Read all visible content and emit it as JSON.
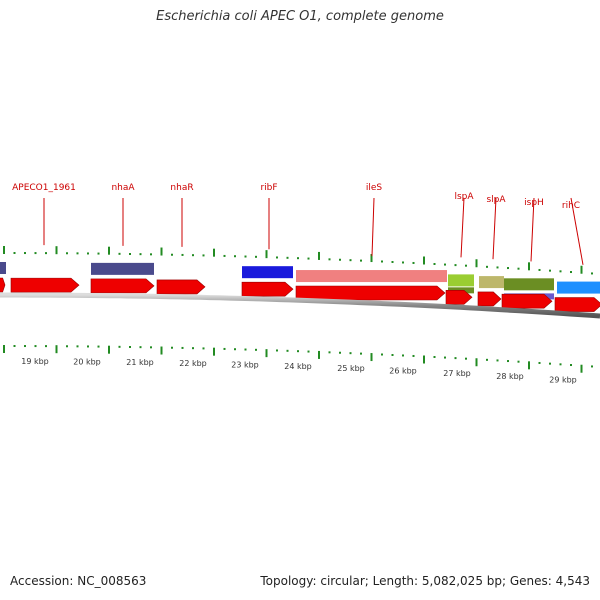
{
  "header": {
    "title": "Escherichia coli APEC O1, complete genome"
  },
  "footer": {
    "accession": "Accession: NC_008563",
    "stats": "Topology: circular; Length: 5,082,025 bp; Genes: 4,543"
  },
  "colors": {
    "cds_red": "#ee0000",
    "tick_green": "#228b22",
    "label_red": "#cc0000",
    "backbone": "#777777"
  },
  "axis": {
    "ticks": [
      {
        "label": "19 kbp"
      },
      {
        "label": "20 kbp"
      },
      {
        "label": "21 kbp"
      },
      {
        "label": "22 kbp"
      },
      {
        "label": "23 kbp"
      },
      {
        "label": "24 kbp"
      },
      {
        "label": "25 kbp"
      },
      {
        "label": "26 kbp"
      },
      {
        "label": "27 kbp"
      },
      {
        "label": "28 kbp"
      },
      {
        "label": "29 kbp"
      }
    ]
  },
  "genes": [
    {
      "name": "APECO1_1961",
      "color": "#ee0000"
    },
    {
      "name": "nhaA",
      "color": "#ee0000"
    },
    {
      "name": "nhaR",
      "color": "#ee0000"
    },
    {
      "name": "ribF",
      "color": "#ee0000"
    },
    {
      "name": "ileS",
      "color": "#ee0000"
    },
    {
      "name": "lspA",
      "color": "#ee0000"
    },
    {
      "name": "slpA",
      "color": "#ee0000"
    },
    {
      "name": "ispH",
      "color": "#ee0000"
    },
    {
      "name": "rihC",
      "color": "#ee0000"
    }
  ],
  "feature_colors": {
    "navy": "#4a4a8c",
    "blue": "#1a1adc",
    "salmon": "#f08080",
    "lime": "#9acd32",
    "olive": "#6b8e23",
    "khaki": "#bdb76b",
    "purple": "#6a5acd",
    "cyan": "#1e90ff"
  }
}
